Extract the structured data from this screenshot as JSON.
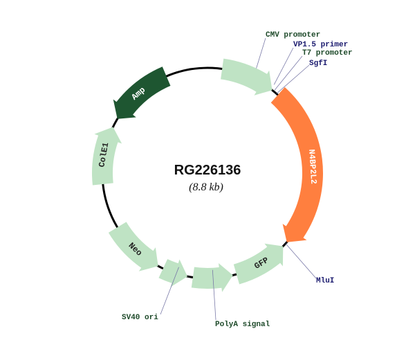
{
  "plasmid": {
    "name": "RG226136",
    "size": "(8.8 kb)"
  },
  "features": [
    {
      "id": "cmv",
      "label": "",
      "color": "#bfe3c4",
      "text_color": "#222"
    },
    {
      "id": "insert",
      "label": "N4BP2L2",
      "color": "#ff7f3f",
      "text_color": "#ffffff"
    },
    {
      "id": "gfp",
      "label": "GFP",
      "color": "#bfe3c4",
      "text_color": "#222"
    },
    {
      "id": "polya",
      "label": "",
      "color": "#bfe3c4",
      "text_color": "#222"
    },
    {
      "id": "sv40",
      "label": "",
      "color": "#bfe3c4",
      "text_color": "#222"
    },
    {
      "id": "neo",
      "label": "Neo",
      "color": "#bfe3c4",
      "text_color": "#222"
    },
    {
      "id": "cole1",
      "label": "ColE1",
      "color": "#bfe3c4",
      "text_color": "#222"
    },
    {
      "id": "amp",
      "label": "Amp",
      "color": "#1e5631",
      "text_color": "#ffffff"
    }
  ],
  "annotations": [
    {
      "label": "CMV promoter",
      "color": "#1e4a2a"
    },
    {
      "label": "VP1.5 primer",
      "color": "#1a1a6e"
    },
    {
      "label": "T7 promoter",
      "color": "#1e4a2a"
    },
    {
      "label": "SgfI",
      "color": "#1a1a6e"
    },
    {
      "label": "MluI",
      "color": "#1a1a6e"
    },
    {
      "label": "SV40 ori",
      "color": "#1e4a2a"
    },
    {
      "label": "PolyA signal",
      "color": "#1e4a2a"
    }
  ]
}
